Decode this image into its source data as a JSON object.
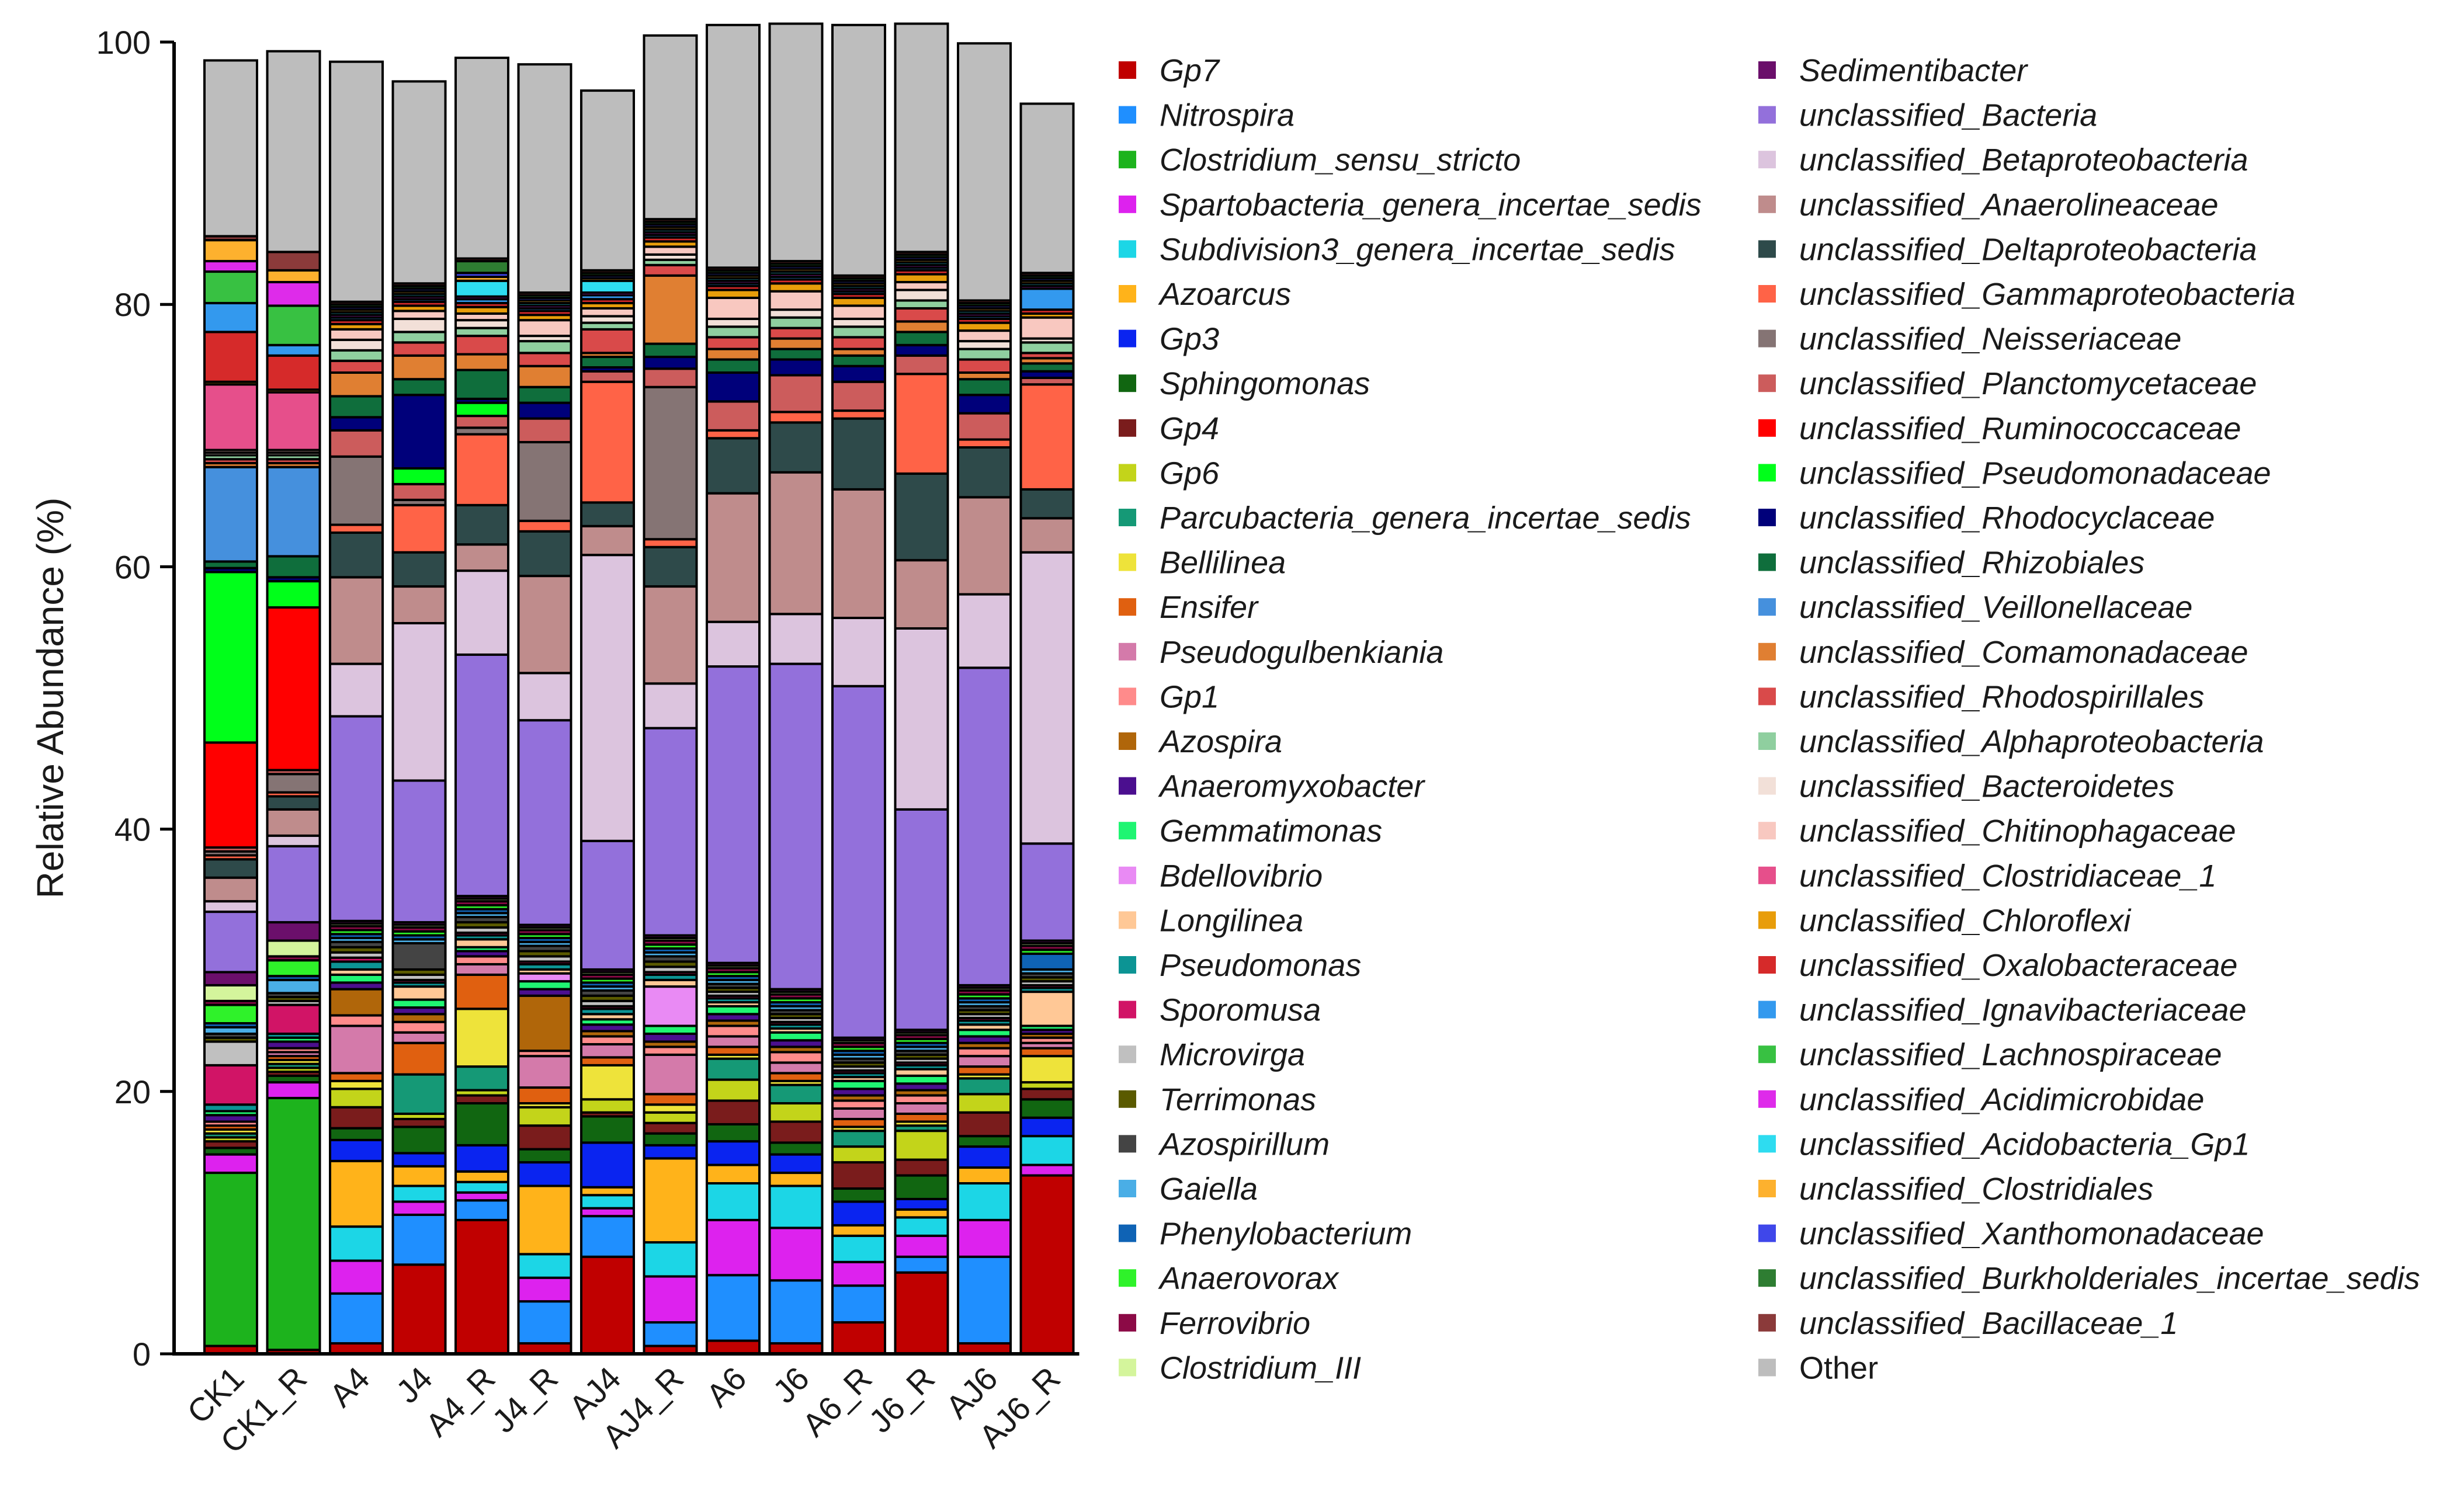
{
  "chart_data": {
    "type": "bar",
    "stacked": true,
    "title": "",
    "xlabel": "",
    "ylabel": "Relative Abundance (%)",
    "ylim": [
      0,
      100
    ],
    "yticks": [
      0,
      20,
      40,
      60,
      80,
      100
    ],
    "legend_position": "right",
    "categories": [
      "CK1",
      "CK1_R",
      "A4",
      "J4",
      "A4_R",
      "J4_R",
      "AJ4",
      "AJ4_R",
      "A6",
      "J6",
      "A6_R",
      "J6_R",
      "AJ6",
      "AJ6_R"
    ],
    "series": [
      {
        "name": "Gp7",
        "color": "#c00000",
        "values": [
          0.6,
          0.3,
          0.8,
          6.8,
          10.2,
          0.8,
          7.4,
          0.6,
          1.0,
          0.8,
          2.4,
          6.2,
          0.8,
          13.6
        ]
      },
      {
        "name": "Nitrospira",
        "color": "#1f8fff",
        "values": [
          0,
          0,
          3.8,
          3.8,
          1.5,
          3.2,
          3.1,
          1.8,
          5.0,
          4.8,
          2.8,
          1.2,
          6.6,
          0
        ]
      },
      {
        "name": "Clostridium_sensu_stricto",
        "color": "#1db31d",
        "values": [
          13.2,
          19.2,
          0,
          0,
          0,
          0,
          0,
          0,
          0,
          0,
          0,
          0,
          0,
          0
        ]
      },
      {
        "name": "Spartobacteria_genera_incertae_sedis",
        "color": "#dd22ee",
        "values": [
          1.4,
          1.2,
          2.5,
          1.0,
          0.6,
          1.8,
          0.6,
          3.5,
          4.2,
          4.0,
          1.8,
          1.6,
          2.8,
          0.8
        ]
      },
      {
        "name": "Subdivision3_genera_incertae_sedis",
        "color": "#1cd6e6",
        "values": [
          0,
          0,
          2.6,
          1.2,
          0.8,
          1.8,
          1.0,
          2.6,
          2.8,
          3.2,
          2.0,
          1.4,
          2.8,
          2.2
        ]
      },
      {
        "name": "Azoarcus",
        "color": "#ffb31a",
        "values": [
          0,
          0,
          5.0,
          1.5,
          0.8,
          5.2,
          0.6,
          6.4,
          1.4,
          1.0,
          0.8,
          0.6,
          1.2,
          0
        ]
      },
      {
        "name": "Gp3",
        "color": "#0a24f0",
        "values": [
          0,
          0,
          1.6,
          1.0,
          2.0,
          1.8,
          3.4,
          1.0,
          1.8,
          1.4,
          1.8,
          0.8,
          1.6,
          1.4
        ]
      },
      {
        "name": "Sphingomonas",
        "color": "#116611",
        "values": [
          0.5,
          0.5,
          0.9,
          2.0,
          3.2,
          1.0,
          2.0,
          0.9,
          1.3,
          0.9,
          1.0,
          1.8,
          0.8,
          1.4
        ]
      },
      {
        "name": "Gp4",
        "color": "#7a1c1c",
        "values": [
          0.5,
          0.3,
          1.6,
          0.6,
          0.6,
          1.8,
          0.3,
          0.8,
          1.8,
          1.6,
          2.0,
          1.2,
          1.8,
          0.8
        ]
      },
      {
        "name": "Gp6",
        "color": "#c3d41a",
        "values": [
          0.3,
          0.3,
          1.4,
          0.4,
          0.4,
          1.4,
          1.0,
          0.8,
          1.6,
          1.4,
          1.2,
          2.2,
          1.4,
          0.5
        ]
      },
      {
        "name": "Parcubacteria_genera_incertae_sedis",
        "color": "#159976",
        "values": [
          0.3,
          0.3,
          0,
          3.0,
          1.8,
          0,
          0,
          0,
          1.6,
          1.4,
          1.2,
          0.4,
          1.2,
          0
        ]
      },
      {
        "name": "Bellilinea",
        "color": "#eee33a",
        "values": [
          0.3,
          0.3,
          0.6,
          0,
          4.4,
          0.3,
          2.6,
          0.6,
          0.3,
          0.3,
          0.3,
          0.3,
          0.3,
          2.0
        ]
      },
      {
        "name": "Ensifer",
        "color": "#e06010",
        "values": [
          0.3,
          0.3,
          0.6,
          2.4,
          2.6,
          1.2,
          0.6,
          0.8,
          0.6,
          0.6,
          0.6,
          0.6,
          0.6,
          0.6
        ]
      },
      {
        "name": "Pseudogulbenkiania",
        "color": "#d47aaa",
        "values": [
          0,
          0.3,
          3.6,
          0.8,
          0.8,
          2.4,
          1.0,
          3.0,
          0.8,
          0.8,
          0.8,
          0.8,
          0.8,
          0.4
        ]
      },
      {
        "name": "Gp1",
        "color": "#ff8b8b",
        "values": [
          0.3,
          0.3,
          0.8,
          0.8,
          0.6,
          0.4,
          0.6,
          0.6,
          0.8,
          0.8,
          0.6,
          0.6,
          0.6,
          0.4
        ]
      },
      {
        "name": "Azospira",
        "color": "#b0660a",
        "values": [
          0,
          0,
          2.0,
          0.6,
          0,
          4.2,
          0.4,
          0.4,
          0.4,
          0.4,
          0.4,
          0.4,
          0.4,
          0.3
        ]
      },
      {
        "name": "Anaeromyxobacter",
        "color": "#4b0f8f",
        "values": [
          0.5,
          0.5,
          0.5,
          0.5,
          0.4,
          0.5,
          0.5,
          0.6,
          0.5,
          0.5,
          0.5,
          0.5,
          0.5,
          0.3
        ]
      },
      {
        "name": "Gemmatimonas",
        "color": "#1ff572",
        "values": [
          0.3,
          0.3,
          0.6,
          0.6,
          0.3,
          0.6,
          0.4,
          0.6,
          0.6,
          0.6,
          0.6,
          0.6,
          0.5,
          0.3
        ]
      },
      {
        "name": "Bdellovibrio",
        "color": "#e98af4",
        "values": [
          0,
          0,
          0,
          0,
          0,
          0.6,
          0,
          3.0,
          0,
          0,
          0,
          0,
          0,
          0
        ]
      },
      {
        "name": "Longilinea",
        "color": "#ffc896",
        "values": [
          0,
          0,
          0.4,
          1.0,
          0.6,
          0.3,
          0.4,
          0.5,
          0.3,
          0.3,
          0.3,
          0.5,
          0.4,
          2.6
        ]
      },
      {
        "name": "Pseudomonas",
        "color": "#0c9494",
        "values": [
          0.5,
          0.3,
          0.6,
          0.3,
          0.3,
          0.4,
          0.4,
          0.4,
          0.3,
          0.3,
          0.3,
          0.3,
          0.3,
          0.3
        ]
      },
      {
        "name": "Sporomusa",
        "color": "#d11466",
        "values": [
          3.0,
          2.2,
          0.3,
          0.2,
          0.2,
          0.2,
          0.2,
          0.2,
          0.2,
          0.2,
          0.2,
          0.2,
          0.2,
          0.2
        ]
      },
      {
        "name": "Microvirga",
        "color": "#c0c0c0",
        "values": [
          1.8,
          0.3,
          0.4,
          0.4,
          0.4,
          0.4,
          0.4,
          0.4,
          0.3,
          0.3,
          0.3,
          0.3,
          0.3,
          0.3
        ]
      },
      {
        "name": "Terrimonas",
        "color": "#5a5a00",
        "values": [
          0.3,
          0.3,
          0.4,
          0.4,
          0.4,
          0.4,
          0.4,
          0.4,
          0.3,
          0.3,
          0.3,
          0.3,
          0.3,
          0.3
        ]
      },
      {
        "name": "Azospirillum",
        "color": "#444444",
        "values": [
          0.3,
          0.3,
          0.4,
          2.0,
          0.4,
          0.4,
          0.4,
          0.4,
          0.3,
          0.3,
          0.3,
          0.3,
          0.3,
          0.3
        ]
      },
      {
        "name": "Gaiella",
        "color": "#4aaee6",
        "values": [
          0.5,
          1.0,
          0.3,
          0.3,
          0.3,
          0.3,
          0.3,
          0.3,
          0.3,
          0.3,
          0.3,
          0.3,
          0.3,
          0.3
        ]
      },
      {
        "name": "Phenylobacterium",
        "color": "#0f63b5",
        "values": [
          0.3,
          0.3,
          0.3,
          0.3,
          0.3,
          0.3,
          0.3,
          0.3,
          0.3,
          0.3,
          0.3,
          0.3,
          0.3,
          1.2
        ]
      },
      {
        "name": "Anaerovorax",
        "color": "#2ff22a",
        "values": [
          1.4,
          1.2,
          0.3,
          0.3,
          0.3,
          0.3,
          0.3,
          0.3,
          0.3,
          0.3,
          0.3,
          0.3,
          0.3,
          0.3
        ]
      },
      {
        "name": "Ferrovibrio",
        "color": "#8c0a46",
        "values": [
          0.3,
          0.3,
          0.3,
          0.3,
          0.3,
          0.3,
          0.3,
          0.3,
          0.3,
          0.3,
          0.3,
          0.3,
          0.3,
          0.3
        ]
      },
      {
        "name": "Clostridium_III",
        "color": "#d4f59c",
        "values": [
          1.2,
          1.2,
          0.2,
          0.2,
          0.2,
          0.2,
          0.2,
          0.2,
          0.2,
          0.2,
          0.2,
          0.2,
          0.2,
          0.2
        ]
      },
      {
        "name": "Sedimentibacter",
        "color": "#6b0f6b",
        "values": [
          1.0,
          1.4,
          0.2,
          0.2,
          0.2,
          0.2,
          0.2,
          0.2,
          0.2,
          0.2,
          0.2,
          0.2,
          0.2,
          0.2
        ]
      },
      {
        "name": "unclassified_Bacteria",
        "color": "#9370db",
        "values": [
          4.6,
          5.8,
          15.6,
          10.8,
          18.4,
          15.6,
          9.8,
          15.8,
          22.6,
          24.8,
          26.8,
          16.8,
          24.2,
          7.4
        ]
      },
      {
        "name": "unclassified_Betaproteobacteria",
        "color": "#dcc4de",
        "values": [
          0.8,
          0.8,
          4.0,
          12.0,
          6.4,
          3.6,
          21.8,
          3.4,
          3.4,
          3.8,
          5.2,
          13.8,
          5.6,
          22.2
        ]
      },
      {
        "name": "unclassified_Anaerolineaceae",
        "color": "#bf8c8c",
        "values": [
          1.8,
          2.0,
          6.6,
          2.8,
          2.0,
          7.4,
          2.2,
          7.4,
          9.8,
          10.8,
          9.8,
          5.2,
          7.4,
          2.6
        ]
      },
      {
        "name": "unclassified_Deltaproteobacteria",
        "color": "#2e4a4a",
        "values": [
          1.4,
          1.0,
          3.4,
          2.6,
          3.0,
          3.4,
          1.8,
          3.0,
          4.2,
          3.8,
          5.4,
          6.6,
          3.8,
          2.2
        ]
      },
      {
        "name": "unclassified_Gammaproteobacteria",
        "color": "#ff6347",
        "values": [
          0.3,
          0.3,
          0.6,
          3.6,
          5.4,
          0.8,
          9.2,
          0.6,
          0.6,
          0.8,
          0.6,
          7.6,
          0.6,
          8.0
        ]
      },
      {
        "name": "unclassified_Neisseriaceae",
        "color": "#857474",
        "values": [
          0.3,
          1.4,
          5.2,
          0.4,
          0.5,
          6.0,
          0,
          11.6,
          0,
          0,
          0,
          0,
          0,
          0
        ]
      },
      {
        "name": "unclassified_Planctomycetaceae",
        "color": "#cc5c5c",
        "values": [
          0.3,
          0.3,
          2.0,
          1.2,
          0.9,
          1.8,
          0.8,
          1.4,
          2.2,
          2.8,
          2.2,
          1.4,
          2.0,
          0.5
        ]
      },
      {
        "name": "unclassified_Ruminococcaceae",
        "color": "#ff0000",
        "values": [
          8.0,
          12.4,
          0,
          0,
          0,
          0,
          0,
          0,
          0,
          0,
          0,
          0,
          0,
          0
        ]
      },
      {
        "name": "unclassified_Pseudomonadaceae",
        "color": "#00ff1a",
        "values": [
          13.0,
          2.0,
          0,
          1.2,
          1.0,
          0,
          0,
          0,
          0,
          0,
          0,
          0,
          0,
          0
        ]
      },
      {
        "name": "unclassified_Rhodocyclaceae",
        "color": "#00007a",
        "values": [
          0.3,
          0.3,
          1.0,
          5.6,
          0.3,
          1.2,
          0.3,
          0.9,
          2.2,
          1.2,
          1.2,
          0.8,
          1.4,
          0.5
        ]
      },
      {
        "name": "unclassified_Rhizobiales",
        "color": "#0f6e3c",
        "values": [
          0.5,
          1.6,
          1.6,
          1.2,
          2.2,
          1.2,
          0.8,
          1.0,
          1.0,
          0.8,
          0.8,
          1.0,
          1.2,
          0.6
        ]
      },
      {
        "name": "unclassified_Veillonellaceae",
        "color": "#4590dd",
        "values": [
          7.2,
          6.8,
          0,
          0,
          0,
          0,
          0,
          0,
          0,
          0,
          0,
          0,
          0,
          0
        ]
      },
      {
        "name": "unclassified_Comamonadaceae",
        "color": "#e07f32",
        "values": [
          0.3,
          0.3,
          1.8,
          1.8,
          1.2,
          1.6,
          0.3,
          5.2,
          0.8,
          0.8,
          0.5,
          0.8,
          0.5,
          0.4
        ]
      },
      {
        "name": "unclassified_Rhodospirillales",
        "color": "#d94a4a",
        "values": [
          0.3,
          0.3,
          0.9,
          1.0,
          1.4,
          1.0,
          1.8,
          0.8,
          0.9,
          0.8,
          0.9,
          1.0,
          1.0,
          0.4
        ]
      },
      {
        "name": "unclassified_Alphaproteobacteria",
        "color": "#8fcf9f",
        "values": [
          0.3,
          0.3,
          0.8,
          0.8,
          0.6,
          0.9,
          0.5,
          0.4,
          0.8,
          0.8,
          0.8,
          0.6,
          0.8,
          0.8
        ]
      },
      {
        "name": "unclassified_Bacteroidetes",
        "color": "#f2e0d8",
        "values": [
          0.2,
          0.2,
          0.8,
          1.0,
          0.6,
          0.4,
          0.5,
          0.4,
          0.6,
          0.6,
          0.6,
          0.8,
          0.6,
          0.3
        ]
      },
      {
        "name": "unclassified_Chitinophagaceae",
        "color": "#f8c8c0",
        "values": [
          0.2,
          0.2,
          0.8,
          0.6,
          0.5,
          1.2,
          0.6,
          0.6,
          1.6,
          1.4,
          1.0,
          0.6,
          0.8,
          1.6
        ]
      },
      {
        "name": "unclassified_Clostridiaceae_1",
        "color": "#e64f8b",
        "values": [
          5.0,
          4.4,
          0,
          0,
          0,
          0,
          0,
          0,
          0,
          0,
          0,
          0,
          0,
          0
        ]
      },
      {
        "name": "unclassified_Chloroflexi",
        "color": "#e89d0a",
        "values": [
          0.2,
          0.2,
          0.4,
          0.4,
          0.5,
          0.4,
          0.4,
          0.4,
          0.6,
          0.6,
          0.6,
          0.6,
          0.6,
          0.3
        ]
      },
      {
        "name": "unclassified_Oxalobacteraceae",
        "color": "#d62a2a",
        "values": [
          3.8,
          2.6,
          0.3,
          0.3,
          0.3,
          0.3,
          0.3,
          0.3,
          0.3,
          0.3,
          0.3,
          0.3,
          0.3,
          0.3
        ]
      },
      {
        "name": "unclassified_Ignavibacteriaceae",
        "color": "#3399ee",
        "values": [
          2.2,
          0.8,
          0.2,
          0.2,
          0.3,
          0.2,
          0.3,
          0.2,
          0.2,
          0.2,
          0.2,
          0.2,
          0.2,
          1.6
        ]
      },
      {
        "name": "unclassified_Lachnospiraceae",
        "color": "#38c142",
        "values": [
          2.4,
          3.0,
          0,
          0,
          0,
          0,
          0,
          0,
          0,
          0,
          0,
          0,
          0,
          0
        ]
      },
      {
        "name": "unclassified_Acidimicrobidae",
        "color": "#de2bea",
        "values": [
          0.8,
          1.8,
          0.2,
          0.2,
          0.2,
          0.2,
          0.2,
          0.2,
          0.2,
          0.2,
          0.2,
          0.2,
          0.2,
          0.2
        ]
      },
      {
        "name": "unclassified_Acidobacteria_Gp1",
        "color": "#2edcf0",
        "values": [
          0,
          0,
          0.2,
          0.2,
          1.2,
          0.2,
          0.9,
          0.2,
          0.2,
          0.2,
          0.2,
          0.2,
          0.2,
          0.2
        ]
      },
      {
        "name": "unclassified_Clostridiales",
        "color": "#fdb12e",
        "values": [
          1.6,
          0.9,
          0.2,
          0.2,
          0.3,
          0.2,
          0.2,
          0.2,
          0.2,
          0.2,
          0.2,
          0.2,
          0.2,
          0.2
        ]
      },
      {
        "name": "unclassified_Xanthomonadaceae",
        "color": "#3f47ea",
        "values": [
          0,
          0,
          0.2,
          0.2,
          0.3,
          0.2,
          0.2,
          0.2,
          0.2,
          0.2,
          0.2,
          0.2,
          0.2,
          0.2
        ]
      },
      {
        "name": "unclassified_Burkholderiales_incertae_sedis",
        "color": "#2e7d32",
        "values": [
          0,
          0,
          0.2,
          0.2,
          0.9,
          0.2,
          0.2,
          0.2,
          0.2,
          0.2,
          0.2,
          0.2,
          0.2,
          0.2
        ]
      },
      {
        "name": "unclassified_Bacillaceae_1",
        "color": "#8b3a3a",
        "values": [
          0.3,
          1.4,
          0.2,
          0.2,
          0.2,
          0.2,
          0.2,
          0.2,
          0.2,
          0.2,
          0.2,
          0.2,
          0.2,
          0.2
        ]
      },
      {
        "name": "Other",
        "color": "#bdbdbd",
        "values": [
          13.4,
          15.3,
          18.3,
          15.4,
          15.3,
          17.4,
          13.7,
          14.0,
          18.5,
          18.1,
          19.1,
          17.4,
          19.6,
          12.9
        ]
      }
    ]
  }
}
